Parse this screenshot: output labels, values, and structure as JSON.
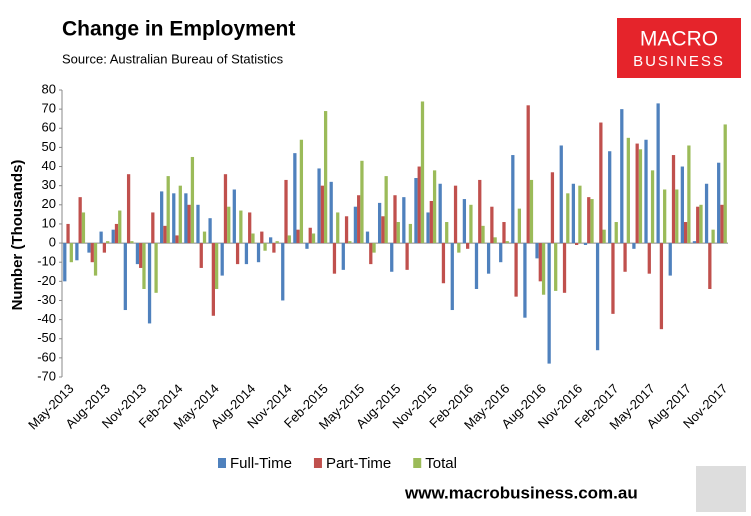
{
  "chart_data": {
    "type": "bar",
    "title": "Change in Employment",
    "subtitle": "Source: Australian Bureau of Statistics",
    "logo_text": [
      "MACRO",
      "BUSINESS"
    ],
    "footer": "www.macrobusiness.com.au",
    "y_label": "Number (Thousands)",
    "categories": [
      "May-2013",
      null,
      null,
      "Aug-2013",
      null,
      null,
      "Nov-2013",
      null,
      null,
      "Feb-2014",
      null,
      null,
      "May-2014",
      null,
      null,
      "Aug-2014",
      null,
      null,
      "Nov-2014",
      null,
      null,
      "Feb-2015",
      null,
      null,
      "May-2015",
      null,
      null,
      "Aug-2015",
      null,
      null,
      "Nov-2015",
      null,
      null,
      "Feb-2016",
      null,
      null,
      "May-2016",
      null,
      null,
      "Aug-2016",
      null,
      null,
      "Nov-2016",
      null,
      null,
      "Feb-2017",
      null,
      null,
      "May-2017",
      null,
      null,
      "Aug-2017",
      null,
      null,
      "Nov-2017"
    ],
    "series": [
      {
        "name": "Full-Time",
        "color": "#4f81bd",
        "values": [
          -20,
          -9,
          -5,
          6,
          7,
          -35,
          -11,
          -42,
          27,
          26,
          26,
          20,
          13,
          -17,
          28,
          -11,
          -10,
          3,
          -30,
          47,
          -3,
          39,
          32,
          -14,
          19,
          6,
          21,
          -15,
          24,
          34,
          16,
          31,
          -35,
          23,
          -24,
          -16,
          -10,
          46,
          -39,
          -8,
          -63,
          51,
          31,
          -1,
          -56,
          48,
          70,
          -3,
          54,
          73,
          -17,
          40,
          1,
          31,
          42
        ]
      },
      {
        "name": "Part-Time",
        "color": "#c0504d",
        "values": [
          10,
          24,
          -10,
          -5,
          10,
          36,
          -13,
          16,
          9,
          4,
          20,
          -13,
          -38,
          36,
          -11,
          16,
          6,
          -5,
          33,
          7,
          8,
          30,
          -16,
          14,
          25,
          -11,
          14,
          25,
          -14,
          40,
          22,
          -21,
          30,
          -3,
          33,
          19,
          11,
          -28,
          72,
          -20,
          37,
          -26,
          -1,
          24,
          63,
          -37,
          -15,
          52,
          -16,
          -45,
          46,
          11,
          19,
          -24,
          20
        ]
      },
      {
        "name": "Total",
        "color": "#9bbb59",
        "values": [
          -10,
          16,
          -17,
          1,
          17,
          1,
          -24,
          -26,
          35,
          30,
          45,
          6,
          -24,
          19,
          17,
          5,
          -4,
          1,
          4,
          54,
          5,
          69,
          16,
          1,
          43,
          -5,
          35,
          11,
          10,
          74,
          38,
          11,
          -5,
          20,
          9,
          3,
          1,
          18,
          33,
          -27,
          -25,
          26,
          30,
          23,
          7,
          11,
          55,
          49,
          38,
          28,
          28,
          51,
          20,
          7,
          62
        ]
      }
    ],
    "ylim": [
      -70,
      80
    ],
    "yticks": [
      -70,
      -60,
      -50,
      -40,
      -30,
      -20,
      -10,
      0,
      10,
      20,
      30,
      40,
      50,
      60,
      70,
      80
    ],
    "grid": false
  }
}
